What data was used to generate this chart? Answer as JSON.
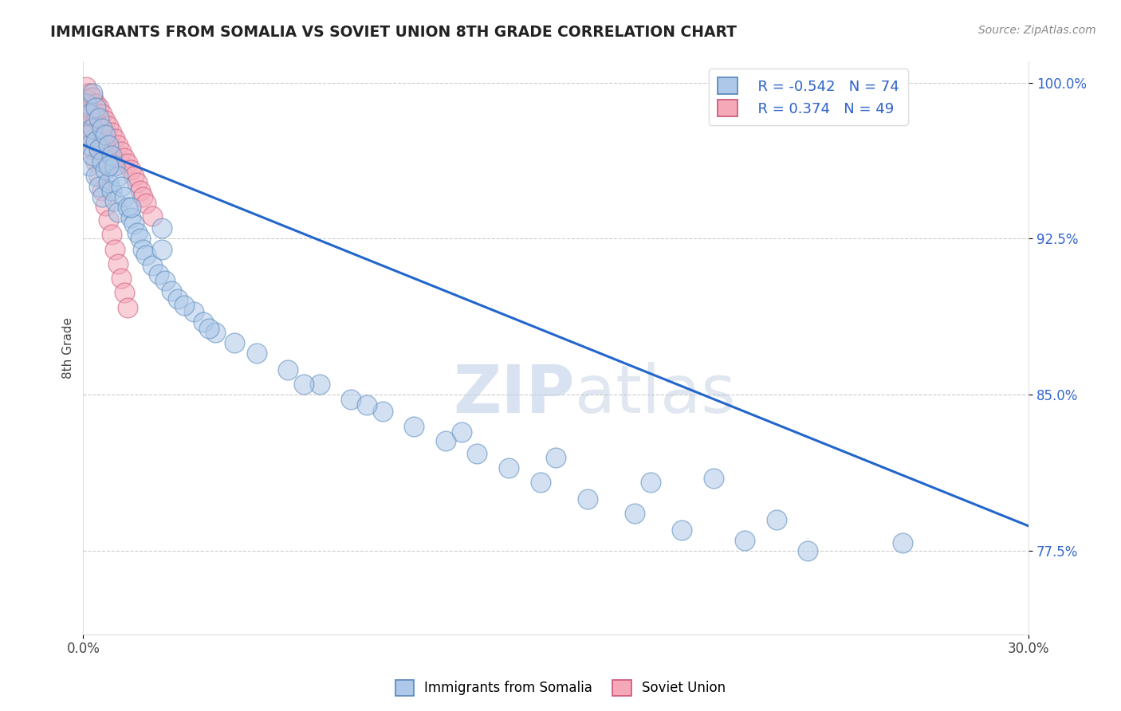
{
  "title": "IMMIGRANTS FROM SOMALIA VS SOVIET UNION 8TH GRADE CORRELATION CHART",
  "source": "Source: ZipAtlas.com",
  "ylabel": "8th Grade",
  "xlim": [
    0.0,
    0.3
  ],
  "ylim": [
    0.735,
    1.01
  ],
  "yticks": [
    0.775,
    0.85,
    0.925,
    1.0
  ],
  "ytick_labels": [
    "77.5%",
    "85.0%",
    "92.5%",
    "100.0%"
  ],
  "xtick_labels": [
    "0.0%",
    "30.0%"
  ],
  "somalia_color": "#adc8e8",
  "soviet_color": "#f5a8b8",
  "somalia_edge": "#5588bb",
  "soviet_edge": "#cc5577",
  "trend_color": "#2266cc",
  "somalia_R": -0.542,
  "somalia_N": 74,
  "soviet_R": 0.374,
  "soviet_N": 49,
  "trend_x0": 0.0,
  "trend_y0": 0.97,
  "trend_x1": 0.3,
  "trend_y1": 0.787,
  "watermark_zip": "ZIP",
  "watermark_atlas": "atlas",
  "background_color": "#ffffff",
  "grid_color": "#cccccc",
  "somalia_scatter": {
    "x": [
      0.001,
      0.001,
      0.002,
      0.002,
      0.002,
      0.003,
      0.003,
      0.003,
      0.004,
      0.004,
      0.004,
      0.005,
      0.005,
      0.005,
      0.006,
      0.006,
      0.006,
      0.007,
      0.007,
      0.008,
      0.008,
      0.009,
      0.009,
      0.01,
      0.01,
      0.011,
      0.011,
      0.012,
      0.013,
      0.014,
      0.015,
      0.016,
      0.017,
      0.018,
      0.019,
      0.02,
      0.022,
      0.024,
      0.026,
      0.028,
      0.03,
      0.035,
      0.038,
      0.042,
      0.048,
      0.055,
      0.065,
      0.075,
      0.085,
      0.095,
      0.105,
      0.115,
      0.125,
      0.135,
      0.145,
      0.16,
      0.175,
      0.19,
      0.21,
      0.23,
      0.025,
      0.032,
      0.04,
      0.07,
      0.09,
      0.12,
      0.15,
      0.18,
      0.22,
      0.26,
      0.008,
      0.015,
      0.025,
      0.2
    ],
    "y": [
      0.99,
      0.975,
      0.985,
      0.97,
      0.96,
      0.995,
      0.978,
      0.965,
      0.988,
      0.972,
      0.955,
      0.983,
      0.968,
      0.95,
      0.978,
      0.962,
      0.945,
      0.975,
      0.958,
      0.97,
      0.952,
      0.965,
      0.948,
      0.96,
      0.943,
      0.955,
      0.938,
      0.95,
      0.945,
      0.94,
      0.935,
      0.932,
      0.928,
      0.925,
      0.92,
      0.917,
      0.912,
      0.908,
      0.905,
      0.9,
      0.896,
      0.89,
      0.885,
      0.88,
      0.875,
      0.87,
      0.862,
      0.855,
      0.848,
      0.842,
      0.835,
      0.828,
      0.822,
      0.815,
      0.808,
      0.8,
      0.793,
      0.785,
      0.78,
      0.775,
      0.93,
      0.893,
      0.882,
      0.855,
      0.845,
      0.832,
      0.82,
      0.808,
      0.79,
      0.779,
      0.96,
      0.94,
      0.92,
      0.81
    ]
  },
  "soviet_scatter": {
    "x": [
      0.001,
      0.001,
      0.001,
      0.002,
      0.002,
      0.002,
      0.003,
      0.003,
      0.003,
      0.004,
      0.004,
      0.004,
      0.005,
      0.005,
      0.005,
      0.006,
      0.006,
      0.007,
      0.007,
      0.008,
      0.008,
      0.009,
      0.009,
      0.01,
      0.01,
      0.011,
      0.012,
      0.013,
      0.014,
      0.015,
      0.016,
      0.017,
      0.018,
      0.019,
      0.02,
      0.022,
      0.002,
      0.003,
      0.004,
      0.005,
      0.006,
      0.007,
      0.008,
      0.009,
      0.01,
      0.011,
      0.012,
      0.013,
      0.014
    ],
    "y": [
      0.998,
      0.992,
      0.985,
      0.995,
      0.988,
      0.98,
      0.993,
      0.985,
      0.975,
      0.99,
      0.982,
      0.972,
      0.988,
      0.979,
      0.968,
      0.985,
      0.975,
      0.982,
      0.971,
      0.979,
      0.967,
      0.976,
      0.963,
      0.973,
      0.96,
      0.97,
      0.967,
      0.964,
      0.961,
      0.958,
      0.955,
      0.952,
      0.948,
      0.945,
      0.942,
      0.936,
      0.975,
      0.968,
      0.962,
      0.955,
      0.948,
      0.941,
      0.934,
      0.927,
      0.92,
      0.913,
      0.906,
      0.899,
      0.892
    ]
  }
}
